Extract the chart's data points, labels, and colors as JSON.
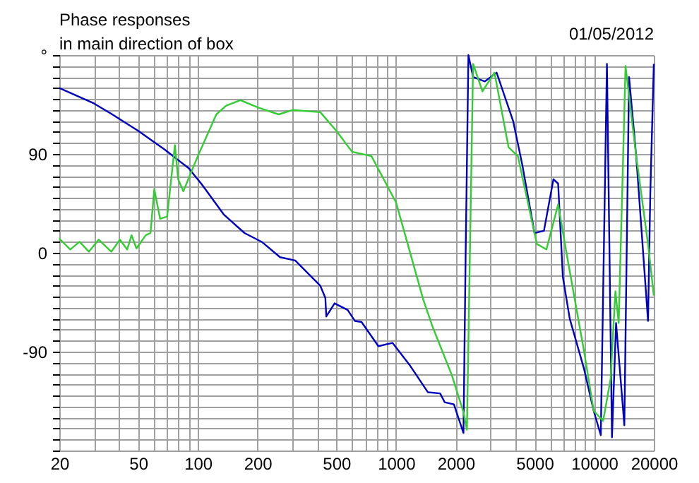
{
  "chart_data": {
    "type": "line",
    "title": "Phase responses",
    "subtitle": "in main direction of box",
    "annotations": [
      "01/05/2012"
    ],
    "log": "x",
    "grid": true,
    "xlim": [
      20,
      20000
    ],
    "xticks": [
      20,
      {
        "value": 30,
        "label": null
      },
      {
        "value": 40,
        "label": null
      },
      50,
      {
        "value": 60,
        "label": null
      },
      {
        "value": 70,
        "label": null
      },
      {
        "value": 80,
        "label": null
      },
      {
        "value": 90,
        "label": null
      },
      100,
      200,
      {
        "value": 300,
        "label": null
      },
      {
        "value": 400,
        "label": null
      },
      500,
      {
        "value": 600,
        "label": null
      },
      {
        "value": 700,
        "label": null
      },
      {
        "value": 800,
        "label": null
      },
      {
        "value": 900,
        "label": null
      },
      1000,
      2000,
      {
        "value": 3000,
        "label": null
      },
      {
        "value": 4000,
        "label": null
      },
      5000,
      {
        "value": 6000,
        "label": null
      },
      {
        "value": 7000,
        "label": null
      },
      {
        "value": 8000,
        "label": null
      },
      {
        "value": 9000,
        "label": null
      },
      10000,
      20000
    ],
    "ylim": [
      -180,
      180
    ],
    "yticks": [
      {
        "value": -180,
        "label": null
      },
      {
        "value": -170,
        "label": null
      },
      {
        "value": -160,
        "label": null
      },
      {
        "value": -150,
        "label": null
      },
      {
        "value": -140,
        "label": null
      },
      {
        "value": -130,
        "label": null
      },
      {
        "value": -120,
        "label": null
      },
      {
        "value": -110,
        "label": null
      },
      {
        "value": -100,
        "label": null
      },
      -90,
      {
        "value": -80,
        "label": null
      },
      {
        "value": -70,
        "label": null
      },
      {
        "value": -60,
        "label": null
      },
      {
        "value": -50,
        "label": null
      },
      {
        "value": -40,
        "label": null
      },
      {
        "value": -30,
        "label": null
      },
      {
        "value": -20,
        "label": null
      },
      {
        "value": -10,
        "label": null
      },
      0,
      {
        "value": 10,
        "label": null
      },
      {
        "value": 20,
        "label": null
      },
      {
        "value": 30,
        "label": null
      },
      {
        "value": 40,
        "label": null
      },
      {
        "value": 50,
        "label": null
      },
      {
        "value": 60,
        "label": null
      },
      {
        "value": 70,
        "label": null
      },
      {
        "value": 80,
        "label": null
      },
      90,
      {
        "value": 100,
        "label": null
      },
      {
        "value": 110,
        "label": null
      },
      {
        "value": 120,
        "label": null
      },
      {
        "value": 130,
        "label": null
      },
      {
        "value": 140,
        "label": null
      },
      {
        "value": 150,
        "label": null
      },
      {
        "value": 160,
        "label": null
      },
      {
        "value": 170,
        "label": null
      },
      {
        "value": 180,
        "label": "°"
      }
    ],
    "series": [
      {
        "color": "#0000c0",
        "x": [
          20,
          29.9,
          37,
          50,
          68,
          90,
          105,
          135,
          172,
          210,
          260,
          310,
          415,
          440,
          445,
          490,
          570,
          620,
          670,
          815,
          960,
          1170,
          1450,
          1670,
          1760,
          1960,
          2190,
          2250,
          2320,
          2450,
          2810,
          3220,
          3900,
          4350,
          5000,
          5580,
          6230,
          6580,
          6950,
          7530,
          8900,
          9950,
          10800,
          11600,
          12300,
          12900,
          14200,
          15000,
          16300,
          18700,
          19200,
          20000
        ],
        "values": [
          150,
          136,
          126,
          111,
          94,
          77,
          62,
          35,
          18,
          10,
          -4,
          -7,
          -30,
          -41,
          -58,
          -46,
          -52,
          -62,
          -63,
          -85,
          -82,
          -102,
          -127,
          -128,
          -136,
          -138,
          -164,
          8,
          180,
          160,
          156,
          164,
          120,
          79,
          18,
          20,
          67,
          63,
          -22,
          -60,
          -106,
          -144,
          -166,
          172,
          -168,
          -64,
          -157,
          160,
          88,
          -62,
          54,
          172
        ]
      },
      {
        "color": "#33cc33",
        "x": [
          20,
          22.7,
          25.3,
          28.2,
          31.6,
          36.6,
          40.4,
          44,
          46.3,
          49,
          54.6,
          57.7,
          60.3,
          64.5,
          70,
          76.6,
          79.6,
          84.5,
          100,
          124,
          139,
          164,
          203,
          256,
          300,
          415,
          500,
          600,
          752,
          1000,
          1375,
          1535,
          1910,
          2190,
          2280,
          2450,
          2730,
          3140,
          3700,
          4120,
          5140,
          5740,
          6580,
          7330,
          8900,
          9950,
          11100,
          12100,
          12800,
          13300,
          14400,
          16300,
          18700,
          20000
        ],
        "values": [
          13,
          3,
          10,
          1,
          12,
          1,
          12,
          3,
          16,
          4,
          16,
          18,
          58,
          31,
          33,
          98,
          67,
          56,
          88,
          126,
          134,
          139,
          132,
          126,
          130,
          128,
          111,
          92,
          88,
          46,
          -43,
          -68,
          -111,
          -145,
          -161,
          172,
          147,
          164,
          96,
          88,
          8,
          3,
          44,
          -5,
          -90,
          -144,
          -153,
          -115,
          -35,
          -64,
          170,
          88,
          8,
          -39
        ]
      }
    ]
  }
}
